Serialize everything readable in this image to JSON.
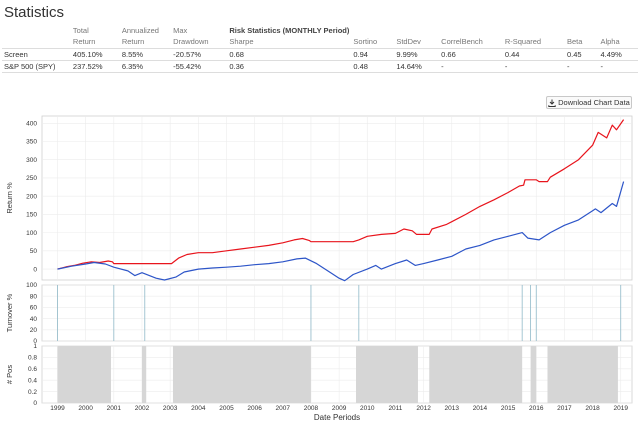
{
  "page": {
    "title": "Statistics"
  },
  "table": {
    "group_header": "Risk Statistics (MONTHLY Period)",
    "headers_top": [
      "",
      "Total",
      "Annualized",
      "Max",
      "",
      "",
      "",
      "",
      "",
      "",
      ""
    ],
    "headers_bottom": [
      "",
      "Return",
      "Return",
      "Drawdown",
      "Sharpe",
      "Sortino",
      "StdDev",
      "CorrelBench",
      "R-Squared",
      "Beta",
      "Alpha"
    ],
    "rows": [
      [
        "Screen",
        "405.10%",
        "8.55%",
        "-20.57%",
        "0.68",
        "0.94",
        "9.99%",
        "0.66",
        "0.44",
        "0.45",
        "4.49%"
      ],
      [
        "S&P 500 (SPY)",
        "237.52%",
        "6.35%",
        "-55.42%",
        "0.36",
        "0.48",
        "14.64%",
        "-",
        "-",
        "-",
        "-"
      ]
    ]
  },
  "download_button": {
    "label": "Download Chart Data",
    "icon": "download-icon"
  },
  "chart_data": {
    "type": "line",
    "colors": {
      "screen": "#e8141c",
      "spy": "#2d55c8"
    },
    "return_panel": {
      "ylabel": "Return %",
      "ylim": [
        -30,
        420
      ],
      "y_ticks": [
        0,
        50,
        100,
        150,
        200,
        250,
        300,
        350,
        400
      ],
      "series": [
        {
          "key": "screen",
          "color": "#e8141c",
          "points": [
            [
              1999.0,
              0
            ],
            [
              1999.3,
              6
            ],
            [
              1999.6,
              10
            ],
            [
              1999.9,
              16
            ],
            [
              2000.2,
              20
            ],
            [
              2000.5,
              18
            ],
            [
              2000.8,
              22
            ],
            [
              2000.95,
              20
            ],
            [
              2001.0,
              15
            ],
            [
              2002.0,
              15
            ],
            [
              2003.05,
              15
            ],
            [
              2003.3,
              30
            ],
            [
              2003.6,
              40
            ],
            [
              2004.0,
              45
            ],
            [
              2004.5,
              45
            ],
            [
              2005.0,
              50
            ],
            [
              2005.5,
              55
            ],
            [
              2006.0,
              60
            ],
            [
              2006.5,
              65
            ],
            [
              2007.0,
              72
            ],
            [
              2007.4,
              80
            ],
            [
              2007.7,
              84
            ],
            [
              2007.95,
              78
            ],
            [
              2008.0,
              75
            ],
            [
              2009.5,
              75
            ],
            [
              2009.7,
              80
            ],
            [
              2010.0,
              90
            ],
            [
              2010.5,
              95
            ],
            [
              2011.0,
              98
            ],
            [
              2011.3,
              110
            ],
            [
              2011.6,
              105
            ],
            [
              2011.75,
              95
            ],
            [
              2011.8,
              95
            ],
            [
              2012.2,
              95
            ],
            [
              2012.3,
              110
            ],
            [
              2012.8,
              122
            ],
            [
              2013.0,
              130
            ],
            [
              2013.5,
              150
            ],
            [
              2014.0,
              172
            ],
            [
              2014.5,
              190
            ],
            [
              2015.0,
              210
            ],
            [
              2015.4,
              228
            ],
            [
              2015.55,
              230
            ],
            [
              2015.6,
              245
            ],
            [
              2016.0,
              245
            ],
            [
              2016.1,
              240
            ],
            [
              2016.4,
              240
            ],
            [
              2016.5,
              252
            ],
            [
              2017.0,
              275
            ],
            [
              2017.5,
              300
            ],
            [
              2018.0,
              340
            ],
            [
              2018.2,
              375
            ],
            [
              2018.5,
              360
            ],
            [
              2018.7,
              395
            ],
            [
              2018.85,
              382
            ],
            [
              2019.1,
              410
            ]
          ]
        },
        {
          "key": "spy",
          "color": "#2d55c8",
          "points": [
            [
              1999.0,
              0
            ],
            [
              1999.5,
              8
            ],
            [
              2000.0,
              14
            ],
            [
              2000.3,
              18
            ],
            [
              2000.7,
              14
            ],
            [
              2001.0,
              5
            ],
            [
              2001.5,
              -5
            ],
            [
              2001.75,
              -18
            ],
            [
              2002.0,
              -10
            ],
            [
              2002.5,
              -25
            ],
            [
              2002.8,
              -30
            ],
            [
              2003.2,
              -22
            ],
            [
              2003.5,
              -8
            ],
            [
              2004.0,
              0
            ],
            [
              2004.5,
              3
            ],
            [
              2005.0,
              5
            ],
            [
              2005.5,
              8
            ],
            [
              2006.0,
              12
            ],
            [
              2006.5,
              15
            ],
            [
              2007.0,
              20
            ],
            [
              2007.5,
              28
            ],
            [
              2007.8,
              30
            ],
            [
              2008.2,
              15
            ],
            [
              2008.7,
              -10
            ],
            [
              2009.0,
              -25
            ],
            [
              2009.2,
              -32
            ],
            [
              2009.5,
              -15
            ],
            [
              2010.0,
              0
            ],
            [
              2010.3,
              10
            ],
            [
              2010.5,
              0
            ],
            [
              2011.0,
              15
            ],
            [
              2011.4,
              25
            ],
            [
              2011.7,
              10
            ],
            [
              2012.0,
              15
            ],
            [
              2012.5,
              25
            ],
            [
              2013.0,
              35
            ],
            [
              2013.5,
              55
            ],
            [
              2014.0,
              65
            ],
            [
              2014.5,
              80
            ],
            [
              2015.0,
              90
            ],
            [
              2015.5,
              100
            ],
            [
              2015.7,
              85
            ],
            [
              2016.1,
              80
            ],
            [
              2016.5,
              100
            ],
            [
              2017.0,
              120
            ],
            [
              2017.5,
              135
            ],
            [
              2018.0,
              160
            ],
            [
              2018.1,
              165
            ],
            [
              2018.3,
              155
            ],
            [
              2018.7,
              180
            ],
            [
              2018.85,
              172
            ],
            [
              2019.1,
              240
            ]
          ]
        }
      ]
    },
    "turnover_panel": {
      "ylabel": "Turnover %",
      "ylim": [
        0,
        100
      ],
      "y_ticks": [
        0,
        20,
        40,
        60,
        80,
        100
      ],
      "spike_years": [
        1999.0,
        2001.0,
        2002.1,
        2008.0,
        2009.7,
        2015.5,
        2015.8,
        2016.0,
        2019.0
      ]
    },
    "pos_panel": {
      "ylabel": "# Pos",
      "ylim": [
        0,
        1
      ],
      "y_ticks": [
        0,
        0.2,
        0.4,
        0.6,
        0.8,
        1
      ],
      "on_ranges": [
        [
          1999.0,
          2000.9
        ],
        [
          2002.0,
          2002.15
        ],
        [
          2003.1,
          2008.0
        ],
        [
          2009.6,
          2011.8
        ],
        [
          2012.2,
          2015.5
        ],
        [
          2015.8,
          2016.0
        ],
        [
          2016.4,
          2018.9
        ]
      ]
    },
    "x_ticks": [
      "1999",
      "2000",
      "2001",
      "2002",
      "2003",
      "2004",
      "2005",
      "2006",
      "2007",
      "2008",
      "2009",
      "2010",
      "2011",
      "2012",
      "2013",
      "2014",
      "2015",
      "2016",
      "2017",
      "2018",
      "2019"
    ],
    "xlabel": "Date Periods",
    "xlim": [
      1998.45,
      2019.4
    ],
    "grid": true
  }
}
